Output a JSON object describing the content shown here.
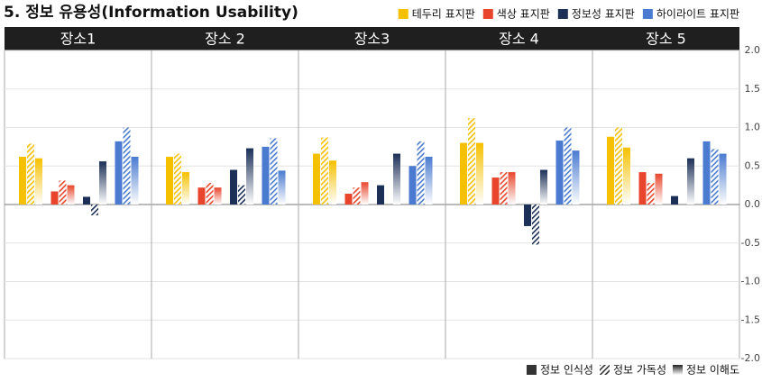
{
  "chart_data": {
    "type": "bar",
    "title": "5. 정보 유용성(Information Usability)",
    "categories": [
      "장소1",
      "장소 2",
      "장소3",
      "장소 4",
      "장소 5"
    ],
    "measures": [
      {
        "name": "정보 인식성",
        "style": "solid"
      },
      {
        "name": "정보 가독성",
        "style": "hatched"
      },
      {
        "name": "정보 이해도",
        "style": "gradient"
      }
    ],
    "series": [
      {
        "name": "테두리 표지판",
        "color": "#f5c000",
        "values": [
          [
            0.62,
            0.79,
            0.6
          ],
          [
            0.62,
            0.66,
            0.42
          ],
          [
            0.66,
            0.87,
            0.57
          ],
          [
            0.8,
            1.12,
            0.8
          ],
          [
            0.88,
            1.0,
            0.74
          ]
        ]
      },
      {
        "name": "색상 표지판",
        "color": "#e8452c",
        "values": [
          [
            0.17,
            0.31,
            0.25
          ],
          [
            0.22,
            0.28,
            0.22
          ],
          [
            0.14,
            0.22,
            0.29
          ],
          [
            0.35,
            0.42,
            0.42
          ],
          [
            0.42,
            0.28,
            0.4
          ]
        ]
      },
      {
        "name": "정보성 표지판",
        "color": "#1b2f57",
        "values": [
          [
            0.1,
            -0.14,
            0.56
          ],
          [
            0.45,
            0.25,
            0.73
          ],
          [
            0.25,
            0,
            0.66
          ],
          [
            -0.28,
            -0.52,
            0.45
          ],
          [
            0.11,
            0,
            0.6
          ]
        ]
      },
      {
        "name": "하이라이트 표지판",
        "color": "#4a7bd0",
        "values": [
          [
            0.82,
            1.0,
            0.62
          ],
          [
            0.75,
            0.86,
            0.44
          ],
          [
            0.5,
            0.82,
            0.62
          ],
          [
            0.83,
            1.0,
            0.7
          ],
          [
            0.82,
            0.72,
            0.66
          ]
        ]
      }
    ],
    "ylim": [
      -2,
      2
    ],
    "yticks": [
      {
        "value": 2,
        "label": "2.0"
      },
      {
        "value": 1.5,
        "label": "1.5"
      },
      {
        "value": 1,
        "label": "1.0"
      },
      {
        "value": 0.5,
        "label": "0.5"
      },
      {
        "value": 0,
        "label": "0.0"
      },
      {
        "value": -0.5,
        "label": "-0.5"
      },
      {
        "value": -1,
        "label": "-1.0"
      },
      {
        "value": -1.5,
        "label": "-1.5"
      },
      {
        "value": -2,
        "label": "-2.0"
      }
    ],
    "grid": true
  }
}
